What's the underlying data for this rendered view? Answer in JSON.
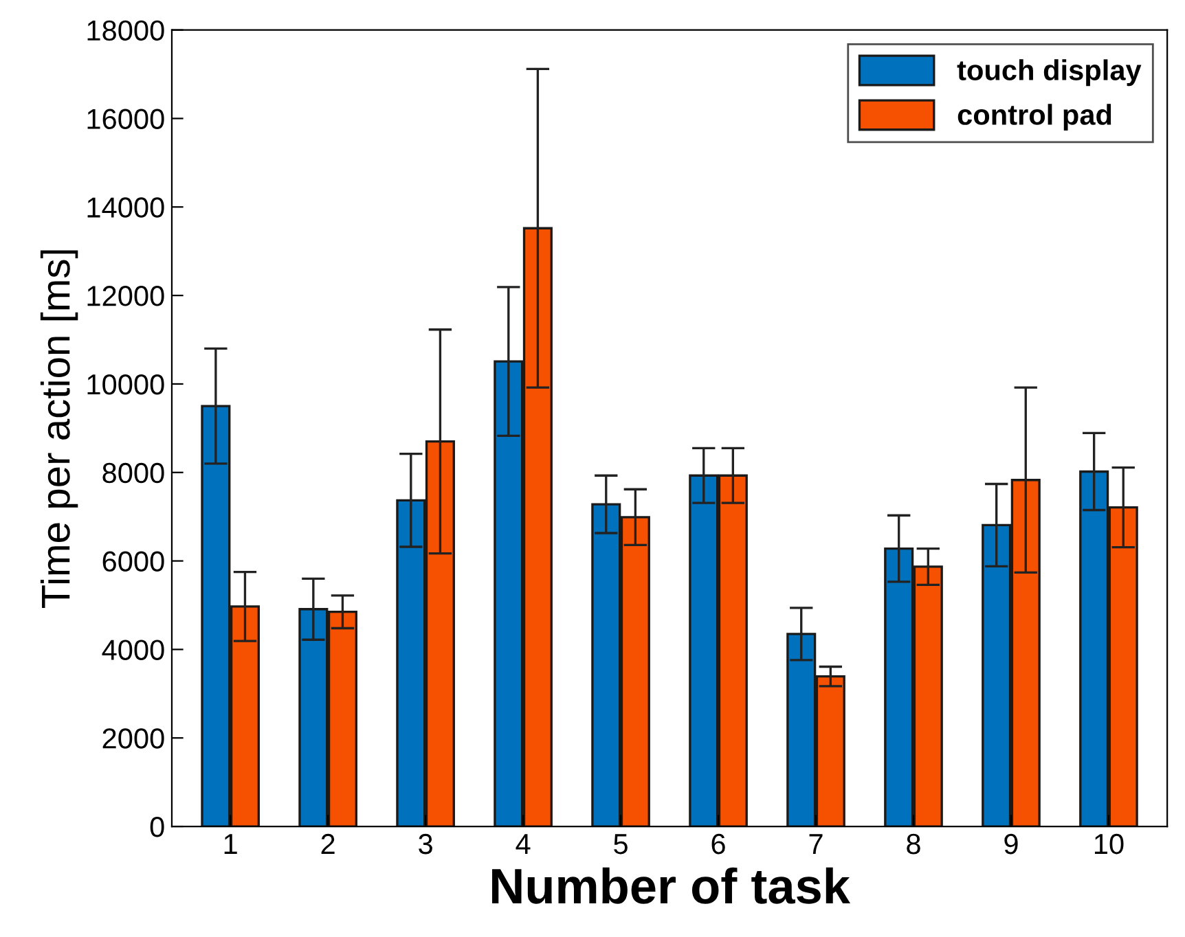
{
  "chart_data": {
    "type": "bar",
    "xlabel": "Number of task",
    "ylabel": "Time per action [ms]",
    "categories": [
      "1",
      "2",
      "3",
      "4",
      "5",
      "6",
      "7",
      "8",
      "9",
      "10"
    ],
    "series": [
      {
        "name": "touch display",
        "color": "#0072bd",
        "values": [
          9500,
          4910,
          7370,
          10510,
          7280,
          7930,
          4350,
          6280,
          6810,
          8020
        ],
        "errors": [
          1300,
          690,
          1050,
          1680,
          650,
          620,
          590,
          750,
          930,
          870
        ]
      },
      {
        "name": "control pad",
        "color": "#f65100",
        "values": [
          4970,
          4850,
          8700,
          13520,
          6990,
          7930,
          3390,
          5870,
          7830,
          7210
        ],
        "errors": [
          780,
          370,
          2530,
          3600,
          630,
          620,
          220,
          410,
          2090,
          900
        ]
      }
    ],
    "ylim": [
      0,
      18000
    ],
    "yticks": [
      0,
      2000,
      4000,
      6000,
      8000,
      10000,
      12000,
      14000,
      16000,
      18000
    ],
    "grid": false,
    "legend": "top right"
  }
}
